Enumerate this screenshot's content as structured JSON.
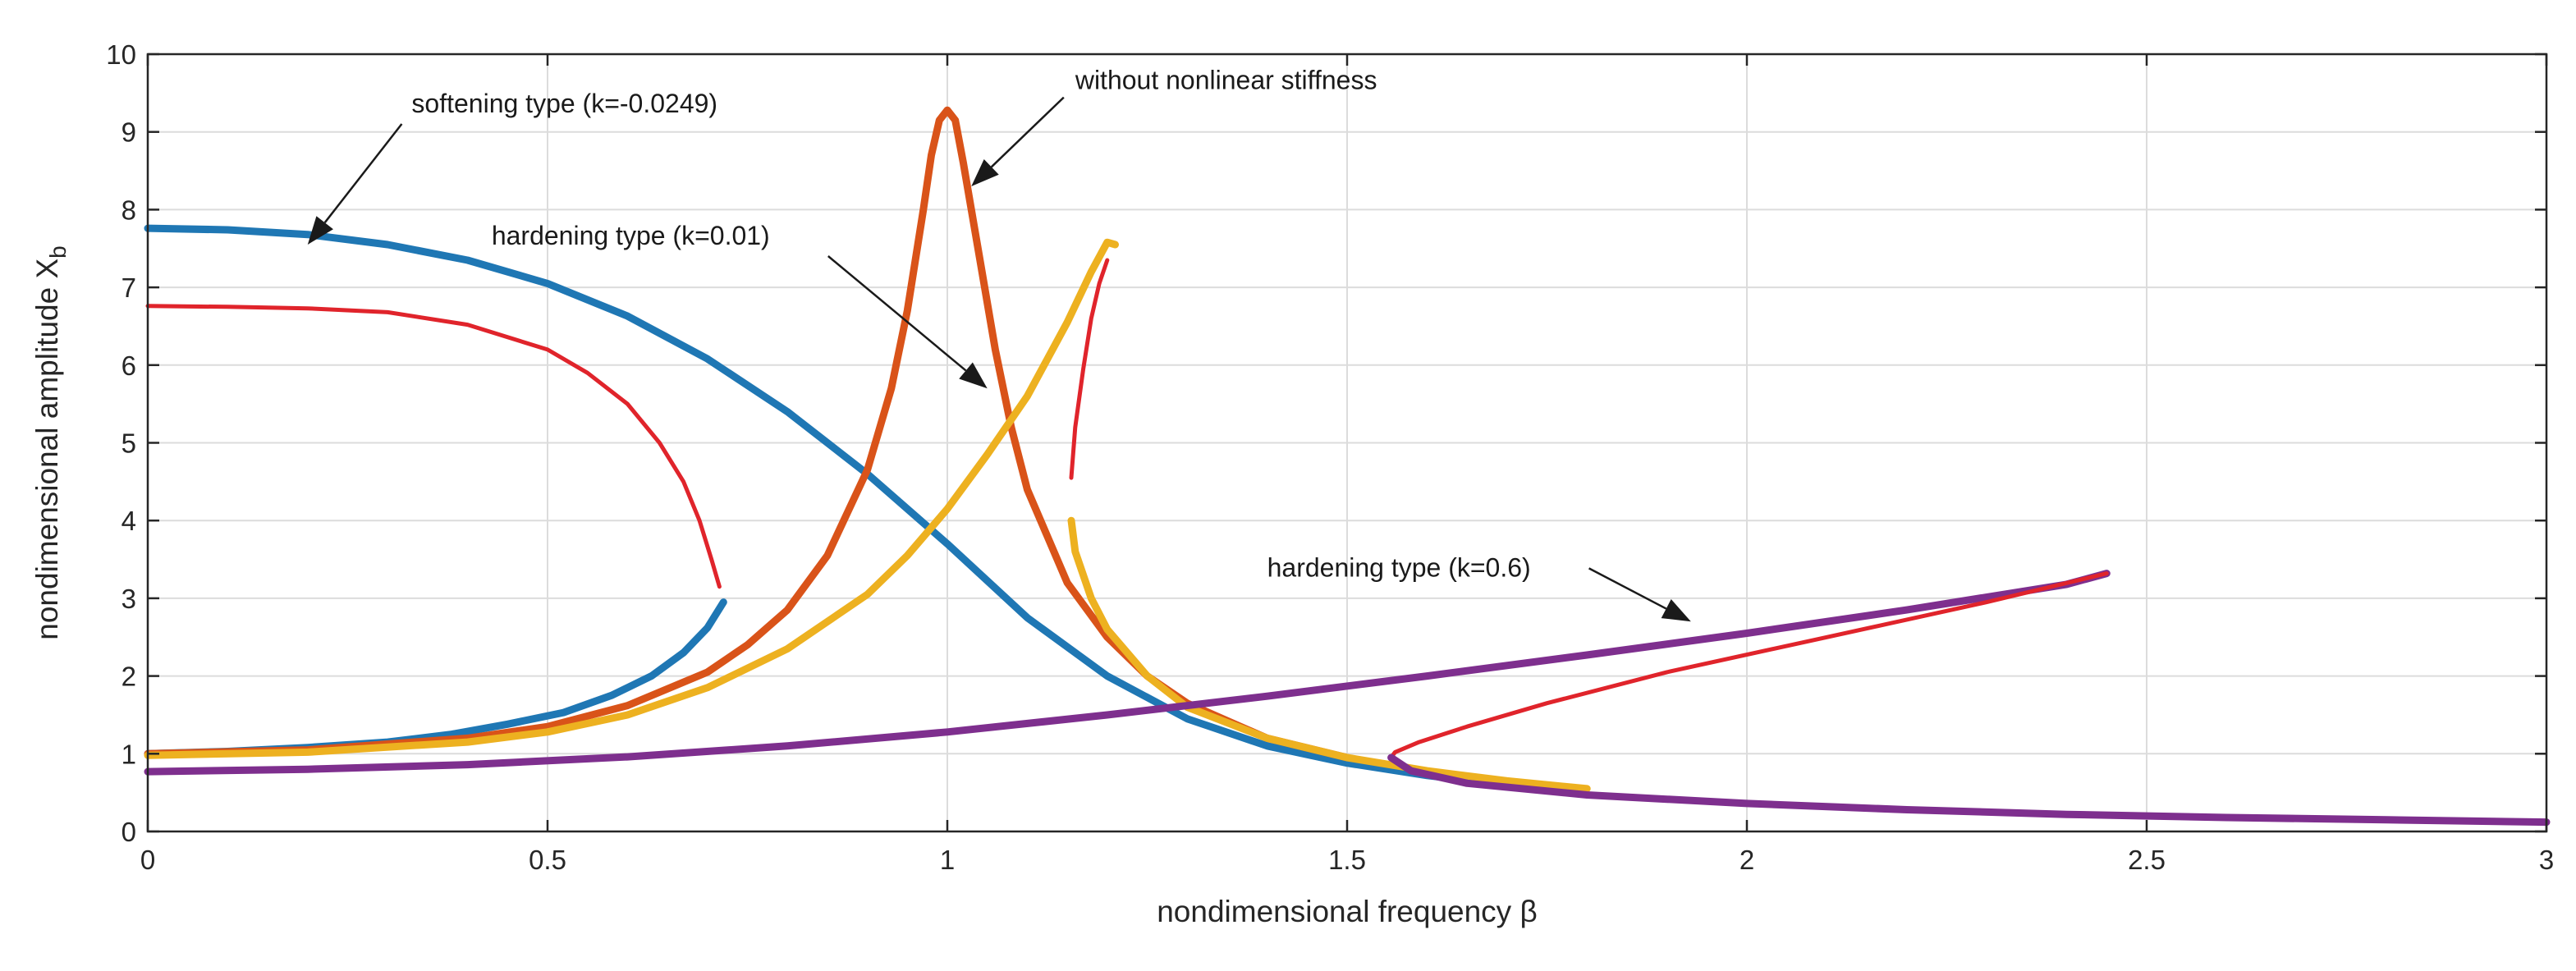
{
  "chart_data": {
    "type": "line",
    "title": "",
    "xlabel": "nondimensional frequency β",
    "ylabel_main": "nondimensional amplitude X",
    "ylabel_sub": "b",
    "xlim": [
      0,
      3
    ],
    "ylim": [
      0,
      10
    ],
    "x_ticks": [
      0,
      0.5,
      1,
      1.5,
      2,
      2.5,
      3
    ],
    "x_tick_labels": [
      "0",
      "0.5",
      "1",
      "1.5",
      "2",
      "2.5",
      "3"
    ],
    "y_ticks": [
      0,
      1,
      2,
      3,
      4,
      5,
      6,
      7,
      8,
      9,
      10
    ],
    "y_tick_labels": [
      "0",
      "1",
      "2",
      "3",
      "4",
      "5",
      "6",
      "7",
      "8",
      "9",
      "10"
    ],
    "grid": true,
    "legend": "none",
    "series": [
      {
        "role": "softening stable",
        "color": "#1f77b4",
        "stroke": "thick",
        "points": [
          [
            0.72,
            2.95
          ],
          [
            0.7,
            2.62
          ],
          [
            0.67,
            2.3
          ],
          [
            0.63,
            2.0
          ],
          [
            0.58,
            1.75
          ],
          [
            0.52,
            1.53
          ],
          [
            0.45,
            1.38
          ],
          [
            0.38,
            1.25
          ],
          [
            0.3,
            1.15
          ],
          [
            0.2,
            1.08
          ],
          [
            0.1,
            1.03
          ],
          [
            0.0,
            1.0
          ]
        ]
      },
      {
        "role": "softening unstable",
        "color": "#e0242b",
        "stroke": "thin",
        "points": [
          [
            0.715,
            3.15
          ],
          [
            0.705,
            3.5
          ],
          [
            0.69,
            4.0
          ],
          [
            0.67,
            4.5
          ],
          [
            0.64,
            5.0
          ],
          [
            0.6,
            5.5
          ],
          [
            0.55,
            5.9
          ],
          [
            0.5,
            6.2
          ],
          [
            0.4,
            6.52
          ],
          [
            0.3,
            6.68
          ],
          [
            0.2,
            6.73
          ],
          [
            0.1,
            6.75
          ],
          [
            0.0,
            6.76
          ]
        ]
      },
      {
        "role": "softening upper branch",
        "color": "#1f77b4",
        "stroke": "thick",
        "points": [
          [
            0.0,
            7.76
          ],
          [
            0.1,
            7.74
          ],
          [
            0.2,
            7.68
          ],
          [
            0.3,
            7.55
          ],
          [
            0.4,
            7.35
          ],
          [
            0.5,
            7.05
          ],
          [
            0.6,
            6.63
          ],
          [
            0.7,
            6.08
          ],
          [
            0.8,
            5.4
          ],
          [
            0.9,
            4.6
          ],
          [
            1.0,
            3.7
          ],
          [
            1.1,
            2.75
          ],
          [
            1.2,
            2.0
          ],
          [
            1.3,
            1.45
          ],
          [
            1.4,
            1.1
          ],
          [
            1.5,
            0.88
          ],
          [
            1.6,
            0.72
          ],
          [
            1.7,
            0.6
          ]
        ]
      },
      {
        "role": "without nonlinear stiffness",
        "color": "#d95319",
        "stroke": "thick",
        "points": [
          [
            0.0,
            1.0
          ],
          [
            0.2,
            1.05
          ],
          [
            0.4,
            1.2
          ],
          [
            0.5,
            1.35
          ],
          [
            0.6,
            1.62
          ],
          [
            0.7,
            2.05
          ],
          [
            0.75,
            2.4
          ],
          [
            0.8,
            2.85
          ],
          [
            0.85,
            3.55
          ],
          [
            0.9,
            4.65
          ],
          [
            0.93,
            5.7
          ],
          [
            0.95,
            6.7
          ],
          [
            0.97,
            8.0
          ],
          [
            0.98,
            8.7
          ],
          [
            0.99,
            9.15
          ],
          [
            1.0,
            9.28
          ],
          [
            1.01,
            9.15
          ],
          [
            1.02,
            8.6
          ],
          [
            1.04,
            7.4
          ],
          [
            1.06,
            6.2
          ],
          [
            1.08,
            5.2
          ],
          [
            1.1,
            4.4
          ],
          [
            1.15,
            3.2
          ],
          [
            1.2,
            2.5
          ],
          [
            1.25,
            2.0
          ],
          [
            1.3,
            1.65
          ],
          [
            1.4,
            1.2
          ],
          [
            1.5,
            0.95
          ]
        ]
      },
      {
        "role": "hardening k=0.01 lower-left branch",
        "color": "#edb120",
        "stroke": "thick",
        "points": [
          [
            0.0,
            0.98
          ],
          [
            0.2,
            1.02
          ],
          [
            0.4,
            1.15
          ],
          [
            0.5,
            1.28
          ],
          [
            0.6,
            1.5
          ],
          [
            0.7,
            1.85
          ],
          [
            0.8,
            2.35
          ],
          [
            0.9,
            3.05
          ],
          [
            0.95,
            3.55
          ],
          [
            1.0,
            4.15
          ],
          [
            1.05,
            4.85
          ],
          [
            1.1,
            5.6
          ],
          [
            1.15,
            6.55
          ],
          [
            1.18,
            7.2
          ],
          [
            1.2,
            7.58
          ],
          [
            1.21,
            7.55
          ]
        ]
      },
      {
        "role": "hardening k=0.01 unstable",
        "color": "#e0242b",
        "stroke": "thin",
        "points": [
          [
            1.155,
            4.55
          ],
          [
            1.16,
            5.2
          ],
          [
            1.17,
            5.95
          ],
          [
            1.18,
            6.6
          ],
          [
            1.19,
            7.05
          ],
          [
            1.2,
            7.35
          ]
        ]
      },
      {
        "role": "hardening k=0.01 lower-right branch",
        "color": "#edb120",
        "stroke": "thick",
        "points": [
          [
            1.155,
            4.0
          ],
          [
            1.16,
            3.6
          ],
          [
            1.18,
            3.0
          ],
          [
            1.2,
            2.6
          ],
          [
            1.25,
            2.0
          ],
          [
            1.3,
            1.6
          ],
          [
            1.4,
            1.2
          ],
          [
            1.5,
            0.95
          ],
          [
            1.6,
            0.78
          ],
          [
            1.7,
            0.65
          ],
          [
            1.8,
            0.55
          ]
        ]
      },
      {
        "role": "hardening k=0.6 upper branch",
        "color": "#7e2f8e",
        "stroke": "thick",
        "points": [
          [
            0.0,
            0.77
          ],
          [
            0.2,
            0.8
          ],
          [
            0.4,
            0.86
          ],
          [
            0.6,
            0.96
          ],
          [
            0.8,
            1.1
          ],
          [
            1.0,
            1.28
          ],
          [
            1.2,
            1.5
          ],
          [
            1.4,
            1.74
          ],
          [
            1.6,
            2.0
          ],
          [
            1.8,
            2.27
          ],
          [
            2.0,
            2.55
          ],
          [
            2.2,
            2.85
          ],
          [
            2.4,
            3.18
          ],
          [
            2.45,
            3.32
          ]
        ]
      },
      {
        "role": "hardening k=0.6 unstable",
        "color": "#e0242b",
        "stroke": "thin",
        "points": [
          [
            2.45,
            3.32
          ],
          [
            2.3,
            2.95
          ],
          [
            2.1,
            2.5
          ],
          [
            1.9,
            2.05
          ],
          [
            1.75,
            1.65
          ],
          [
            1.65,
            1.35
          ],
          [
            1.59,
            1.15
          ],
          [
            1.56,
            1.02
          ],
          [
            1.555,
            0.95
          ]
        ]
      },
      {
        "role": "hardening k=0.6 lower branch",
        "color": "#7e2f8e",
        "stroke": "thick",
        "points": [
          [
            1.555,
            0.95
          ],
          [
            1.58,
            0.78
          ],
          [
            1.65,
            0.62
          ],
          [
            1.8,
            0.47
          ],
          [
            2.0,
            0.36
          ],
          [
            2.2,
            0.28
          ],
          [
            2.4,
            0.22
          ],
          [
            2.6,
            0.18
          ],
          [
            2.8,
            0.15
          ],
          [
            3.0,
            0.12
          ]
        ]
      }
    ],
    "annotations": [
      {
        "text": "softening type (k=-0.0249)",
        "tx": 0.33,
        "ty": 9.25,
        "ax": 0.2,
        "ay": 7.55
      },
      {
        "text": "without nonlinear stiffness",
        "tx": 1.16,
        "ty": 9.55,
        "ax": 1.03,
        "ay": 8.3
      },
      {
        "text": "hardening type (k=0.01)",
        "tx": 0.43,
        "ty": 7.55,
        "ax": 1.05,
        "ay": 5.7
      },
      {
        "text": "hardening type (k=0.6)",
        "tx": 1.4,
        "ty": 3.28,
        "ax": 1.93,
        "ay": 2.7
      }
    ]
  }
}
